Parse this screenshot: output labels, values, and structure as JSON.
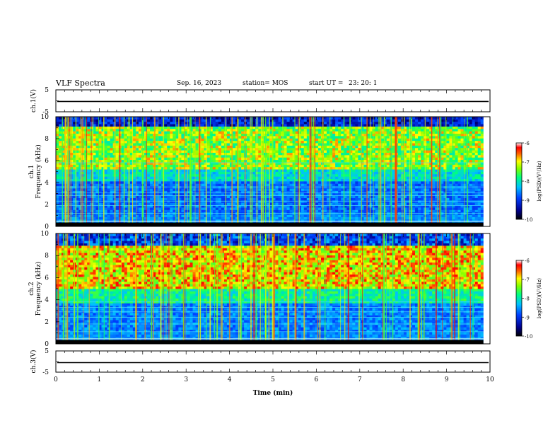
{
  "header": {
    "title": "VLF Spectra",
    "date": "Sep. 16, 2023",
    "station": "station= MOS",
    "start_label": "start  UT  =",
    "start_time": "23: 20: 1"
  },
  "chart_data": [
    {
      "type": "line",
      "panel": "ch1-voltage",
      "ylabel": "ch.1(V)",
      "ylim": [
        -5,
        5
      ],
      "yticks": [
        "5",
        "-5"
      ],
      "xlim": [
        0,
        10
      ],
      "trace_level": -0.3
    },
    {
      "type": "heatmap",
      "panel": "ch1-spectrogram",
      "ylabel": "Frequency (kHz)",
      "channel_label": "ch.1",
      "xlim": [
        0,
        10
      ],
      "ylim": [
        0,
        10
      ],
      "yticks": [
        "0",
        "2",
        "4",
        "6",
        "8",
        "10"
      ],
      "data_end_min": 9.85,
      "colorbar": {
        "label": "log(PSD)(V²/Hz)",
        "range": [
          -10,
          -6
        ],
        "ticks": [
          "-6",
          "-7",
          "-8",
          "-9",
          "-10"
        ]
      }
    },
    {
      "type": "heatmap",
      "panel": "ch2-spectrogram",
      "ylabel": "Frequency (kHz)",
      "channel_label": "ch.2",
      "xlim": [
        0,
        10
      ],
      "ylim": [
        0,
        10
      ],
      "yticks": [
        "0",
        "2",
        "4",
        "6",
        "8",
        "10"
      ],
      "data_end_min": 9.85,
      "colorbar": {
        "label": "log(PSD)(V²/Hz)",
        "range": [
          -10,
          -6
        ],
        "ticks": [
          "-6",
          "-7",
          "-8",
          "-9",
          "-10"
        ]
      }
    },
    {
      "type": "line",
      "panel": "ch3-voltage",
      "ylabel": "ch.3(V)",
      "ylim": [
        -5,
        5
      ],
      "yticks": [
        "5",
        "-5"
      ],
      "xlim": [
        0,
        10
      ],
      "xlabel": "Time  (min)",
      "xticks": [
        "0",
        "1",
        "2",
        "3",
        "4",
        "5",
        "6",
        "7",
        "8",
        "9",
        "10"
      ],
      "trace_level": -0.5
    }
  ]
}
